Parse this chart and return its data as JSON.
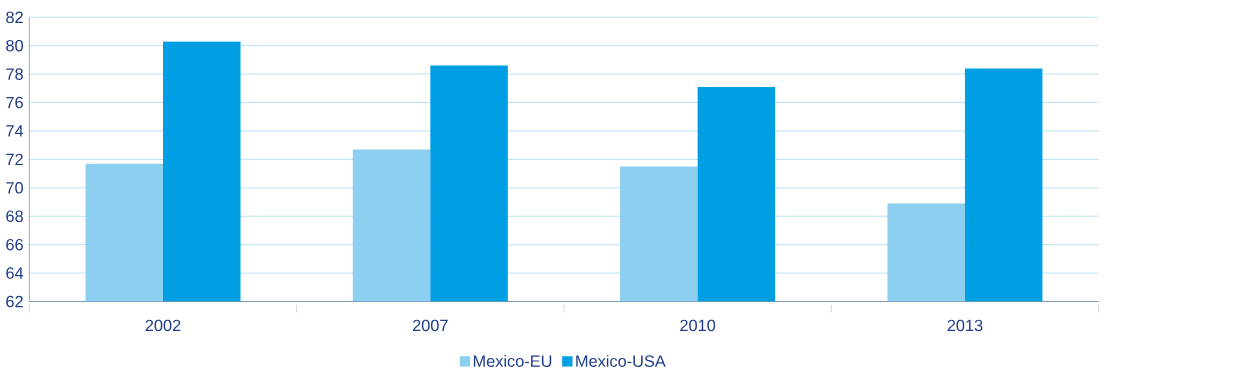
{
  "chart_data": {
    "type": "bar",
    "categories": [
      "2002",
      "2007",
      "2010",
      "2013"
    ],
    "series": [
      {
        "name": "Mexico-EU",
        "color": "#8ccff1",
        "values": [
          71.7,
          72.7,
          71.5,
          68.9
        ]
      },
      {
        "name": "Mexico-USA",
        "color": "#009fe3",
        "values": [
          80.3,
          78.6,
          77.1,
          78.4
        ]
      }
    ],
    "ylim": [
      62,
      82
    ],
    "yticks": [
      62,
      64,
      66,
      68,
      70,
      72,
      74,
      76,
      78,
      80,
      82
    ],
    "grid": "y",
    "legend": "bottom"
  }
}
